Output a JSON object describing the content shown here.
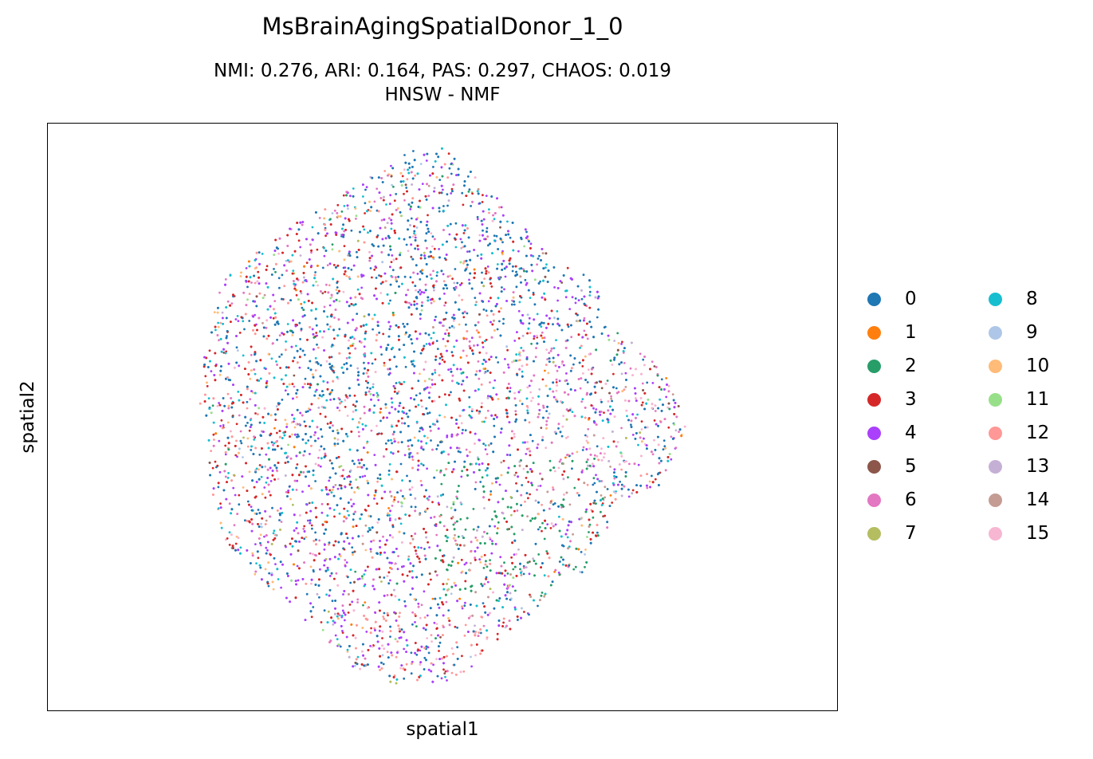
{
  "chart_data": {
    "type": "scatter",
    "title": "MsBrainAgingSpatialDonor_1_0",
    "subtitle_lines": [
      "NMI: 0.276,  ARI: 0.164,  PAS: 0.297,  CHAOS: 0.019",
      "HNSW - NMF"
    ],
    "xlabel": "spatial1",
    "ylabel": "spatial2",
    "grid": false,
    "legend_position": "right, outside, 2 columns",
    "series": [
      {
        "name": "0",
        "color": "#1f77b4"
      },
      {
        "name": "1",
        "color": "#ff7f0e"
      },
      {
        "name": "2",
        "color": "#279e68"
      },
      {
        "name": "3",
        "color": "#d62728"
      },
      {
        "name": "4",
        "color": "#aa40fc"
      },
      {
        "name": "5",
        "color": "#8c564b"
      },
      {
        "name": "6",
        "color": "#e377c2"
      },
      {
        "name": "7",
        "color": "#b5bd61"
      },
      {
        "name": "8",
        "color": "#17becf"
      },
      {
        "name": "9",
        "color": "#aec7e8"
      },
      {
        "name": "10",
        "color": "#ffbb78"
      },
      {
        "name": "11",
        "color": "#98df8a"
      },
      {
        "name": "12",
        "color": "#ff9896"
      },
      {
        "name": "13",
        "color": "#c5b0d5"
      },
      {
        "name": "14",
        "color": "#c49c94"
      },
      {
        "name": "15",
        "color": "#f7b6d2"
      }
    ]
  }
}
